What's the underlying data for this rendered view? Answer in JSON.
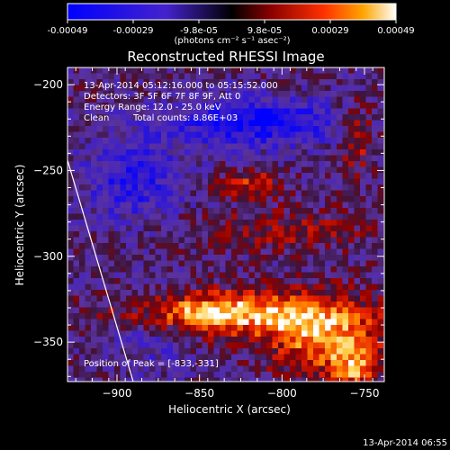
{
  "colorbar": {
    "tick_labels": [
      "-0.00049",
      "-0.00029",
      "-9.8e-05",
      "9.8e-05",
      "0.00029",
      "0.00049"
    ],
    "unit_label": "(photons cm⁻² s⁻¹ asec⁻²)",
    "range": [
      -0.00049,
      0.00049
    ]
  },
  "chart_data": {
    "type": "heatmap",
    "title": "Reconstructed RHESSI Image",
    "xlabel": "Heliocentric X (arcsec)",
    "ylabel": "Heliocentric Y (arcsec)",
    "xlim": [
      -930,
      -738
    ],
    "ylim": [
      -373,
      -190
    ],
    "x_ticks": [
      -900,
      -850,
      -800,
      -750
    ],
    "y_ticks": [
      -200,
      -250,
      -300,
      -350
    ],
    "annotations": [
      "13-Apr-2014 05:12:16.000 to 05:15:52.000",
      "Detectors: 3F 5F 6F 7F 8F 9F, Att 0",
      "Energy Range: 12.0 - 25.0 keV",
      "Clean",
      "Total counts: 8.86E+03"
    ],
    "peak_label": "Position of Peak = [-833,-331]",
    "peak": [
      -833,
      -331
    ]
  },
  "footer": {
    "timestamp": "13-Apr-2014 06:55"
  }
}
